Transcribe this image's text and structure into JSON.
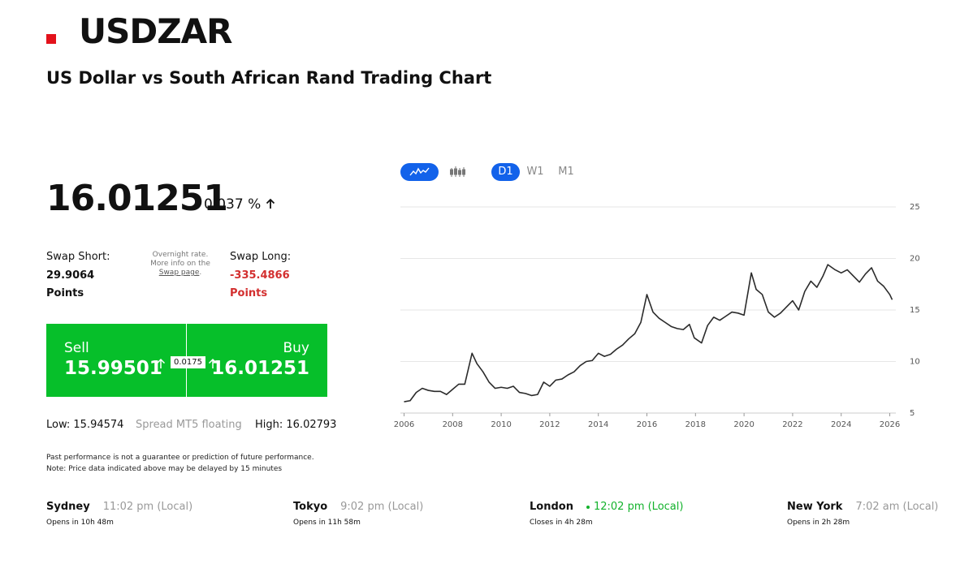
{
  "header": {
    "symbol": "USDZAR",
    "subtitle": "US Dollar vs South African Rand Trading Chart"
  },
  "quote": {
    "price": "16.01251",
    "change": "0.037 %"
  },
  "swap": {
    "short_label": "Swap Short:",
    "short_value": "29.9064",
    "short_unit": "Points",
    "note_text": "Overnight rate. More info on the",
    "note_link": "Swap page",
    "note_end": ".",
    "long_label": "Swap Long:",
    "long_value": "-335.4866",
    "long_unit": "Points"
  },
  "trade": {
    "sell_label": "Sell",
    "sell_price": "15.99501",
    "spread": "0.0175",
    "buy_label": "Buy",
    "buy_price": "16.01251"
  },
  "range": {
    "low": "Low: 15.94574",
    "spread_type": "Spread MT5 floating",
    "high": "High: 16.02793"
  },
  "disclaimer": [
    "Past performance is not a guarantee or prediction of future performance.",
    "Note: Price data indicated above may be delayed by 15 minutes"
  ],
  "timeframes": [
    "D1",
    "W1",
    "M1"
  ],
  "sessions": [
    {
      "city": "Sydney",
      "time": "11:02 pm (Local)",
      "status": "Opens in 10h 48m"
    },
    {
      "city": "Tokyo",
      "time": "9:02 pm (Local)",
      "status": "Opens in 11h 58m"
    },
    {
      "city": "London",
      "time": "12:02 pm (Local)",
      "status": "Closes in 4h 28m"
    },
    {
      "city": "New York",
      "time": "7:02 am (Local)",
      "status": "Opens in 2h 28m"
    }
  ],
  "chart_data": {
    "type": "line",
    "color": "#2b2b2b",
    "grid": true,
    "x": [
      2006.0,
      2006.25,
      2006.5,
      2006.75,
      2007.0,
      2007.25,
      2007.5,
      2007.75,
      2008.0,
      2008.25,
      2008.5,
      2008.8,
      2009.0,
      2009.25,
      2009.5,
      2009.75,
      2010.0,
      2010.25,
      2010.5,
      2010.75,
      2011.0,
      2011.25,
      2011.5,
      2011.75,
      2012.0,
      2012.25,
      2012.5,
      2012.75,
      2013.0,
      2013.25,
      2013.5,
      2013.75,
      2014.0,
      2014.25,
      2014.5,
      2014.75,
      2015.0,
      2015.25,
      2015.5,
      2015.75,
      2016.0,
      2016.25,
      2016.5,
      2016.75,
      2017.0,
      2017.25,
      2017.5,
      2017.75,
      2017.95,
      2018.25,
      2018.5,
      2018.75,
      2019.0,
      2019.25,
      2019.5,
      2019.75,
      2020.0,
      2020.3,
      2020.5,
      2020.75,
      2021.0,
      2021.25,
      2021.5,
      2021.75,
      2022.0,
      2022.25,
      2022.5,
      2022.75,
      2023.0,
      2023.25,
      2023.45,
      2023.75,
      2024.0,
      2024.25,
      2024.5,
      2024.75,
      2025.0,
      2025.25,
      2025.5,
      2025.75,
      2026.0,
      2026.1
    ],
    "values": [
      6.1,
      6.2,
      7.0,
      7.4,
      7.2,
      7.1,
      7.1,
      6.8,
      7.3,
      7.8,
      7.8,
      10.8,
      9.8,
      9.0,
      8.0,
      7.4,
      7.5,
      7.4,
      7.6,
      7.0,
      6.9,
      6.7,
      6.8,
      8.0,
      7.6,
      8.2,
      8.3,
      8.7,
      9.0,
      9.6,
      10.0,
      10.1,
      10.8,
      10.5,
      10.7,
      11.2,
      11.6,
      12.2,
      12.7,
      13.8,
      16.5,
      14.8,
      14.2,
      13.8,
      13.4,
      13.2,
      13.1,
      13.6,
      12.3,
      11.8,
      13.5,
      14.3,
      14.0,
      14.4,
      14.8,
      14.7,
      14.5,
      18.6,
      17.0,
      16.5,
      14.8,
      14.3,
      14.7,
      15.3,
      15.9,
      15.0,
      16.8,
      17.8,
      17.2,
      18.3,
      19.4,
      18.9,
      18.6,
      18.9,
      18.3,
      17.7,
      18.5,
      19.1,
      17.8,
      17.3,
      16.5,
      16.0
    ],
    "xlim": [
      2005.85,
      2026.25
    ],
    "xticks": [
      2006,
      2008,
      2010,
      2012,
      2014,
      2016,
      2018,
      2020,
      2022,
      2024,
      2026
    ],
    "ylim": [
      5,
      25
    ],
    "yticks": [
      5,
      10,
      15,
      20,
      25
    ]
  }
}
